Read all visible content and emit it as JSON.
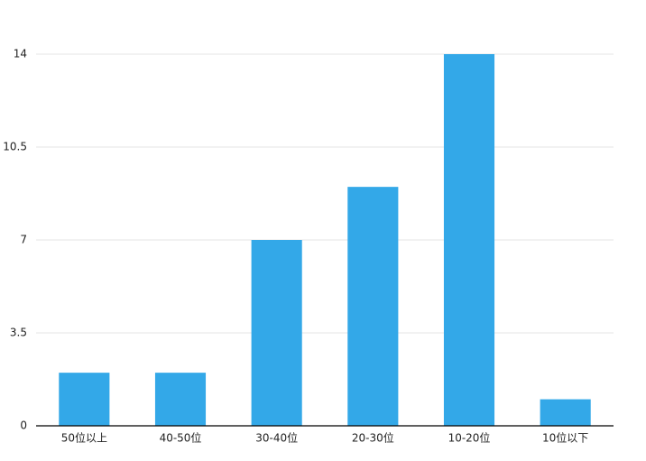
{
  "chart_data": {
    "type": "bar",
    "categories": [
      "50位以上",
      "40-50位",
      "30-40位",
      "20-30位",
      "10-20位",
      "10位以下"
    ],
    "values": [
      2,
      2,
      7,
      9,
      14,
      1
    ],
    "color": "#33a8e8",
    "ylim": [
      0,
      14
    ],
    "yticks": [
      0,
      3.5,
      7,
      10.5,
      14
    ],
    "grid": true
  }
}
